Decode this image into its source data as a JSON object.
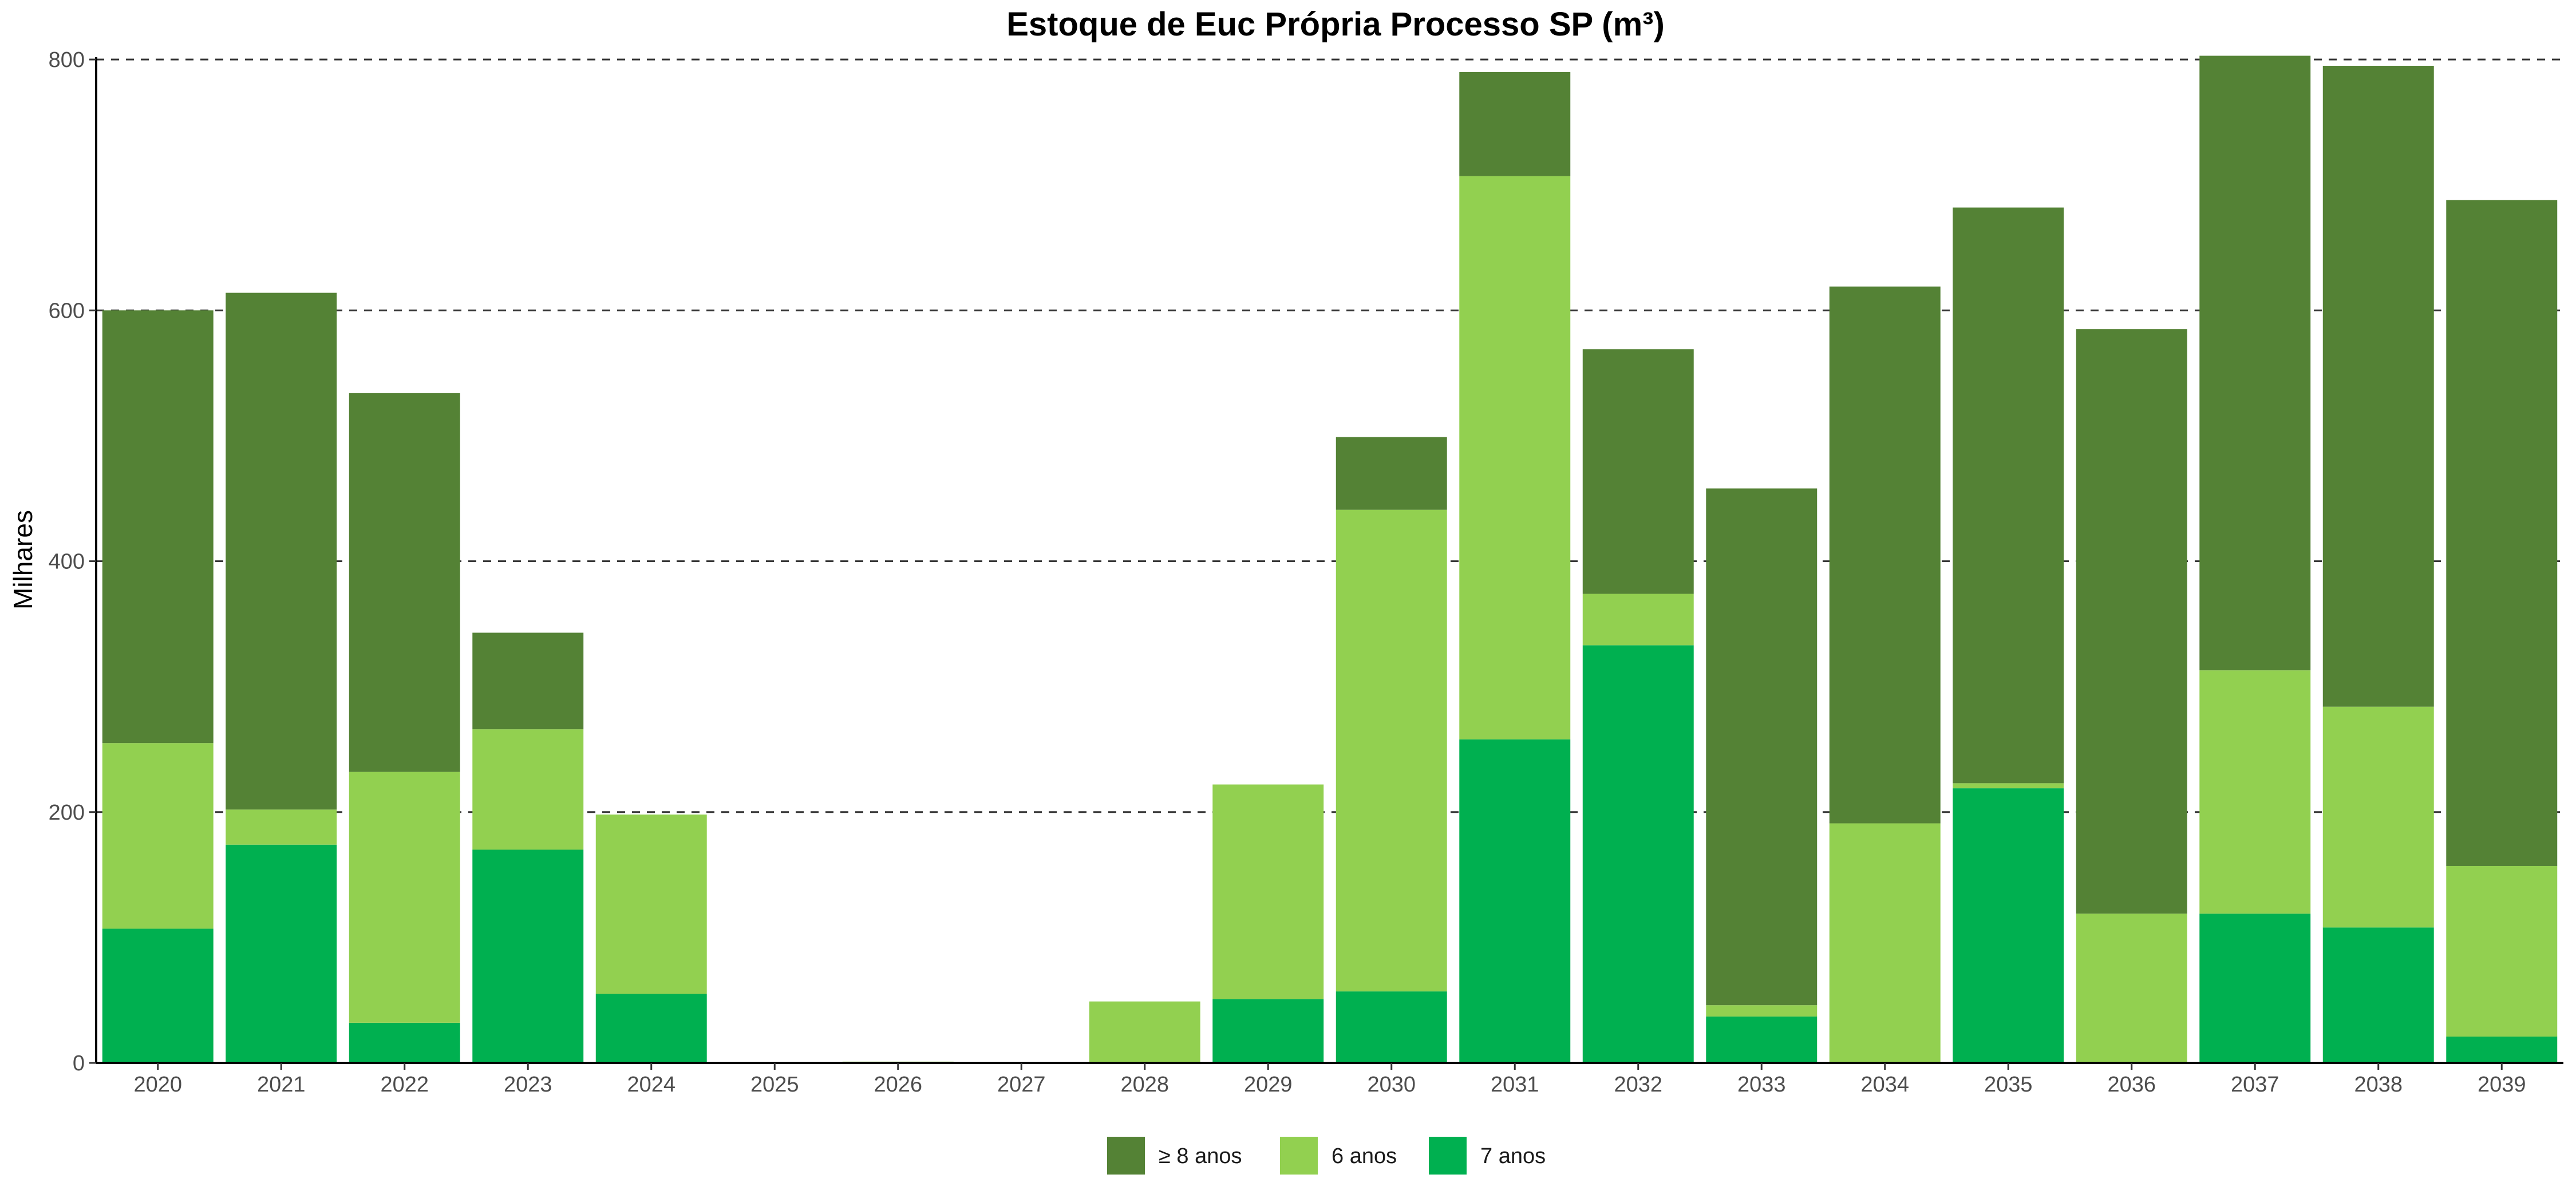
{
  "chart_data": {
    "type": "bar",
    "stacked": true,
    "title": "Estoque de Euc Própria Processo SP (m³)",
    "xlabel": "",
    "ylabel": "Milhares",
    "ylim": [
      0,
      800
    ],
    "yticks": [
      0,
      200,
      400,
      600,
      800
    ],
    "grid": "horizontal dashed",
    "legend_position": "bottom",
    "categories": [
      "2020",
      "2021",
      "2022",
      "2023",
      "2024",
      "2025",
      "2026",
      "2027",
      "2028",
      "2029",
      "2030",
      "2031",
      "2032",
      "2033",
      "2034",
      "2035",
      "2036",
      "2037",
      "2038",
      "2039"
    ],
    "series": [
      {
        "name": "7 anos",
        "color": "#00b050",
        "values": [
          107,
          174,
          32,
          170,
          55,
          0,
          0,
          0,
          0,
          51,
          57,
          258,
          333,
          37,
          0,
          219,
          0,
          119,
          108,
          21
        ]
      },
      {
        "name": "6 anos",
        "color": "#92d050",
        "values": [
          148,
          28,
          200,
          96,
          143,
          0,
          1,
          0,
          49,
          171,
          384,
          449,
          41,
          9,
          191,
          4,
          119,
          194,
          176,
          136
        ]
      },
      {
        "name": "≥ 8 anos",
        "color": "#548235",
        "values": [
          345,
          412,
          302,
          77,
          0,
          0,
          0,
          0,
          0,
          0,
          58,
          83,
          195,
          412,
          428,
          459,
          466,
          490,
          511,
          531
        ]
      }
    ],
    "legend_order": [
      "≥ 8 anos",
      "6 anos",
      "7 anos"
    ]
  }
}
